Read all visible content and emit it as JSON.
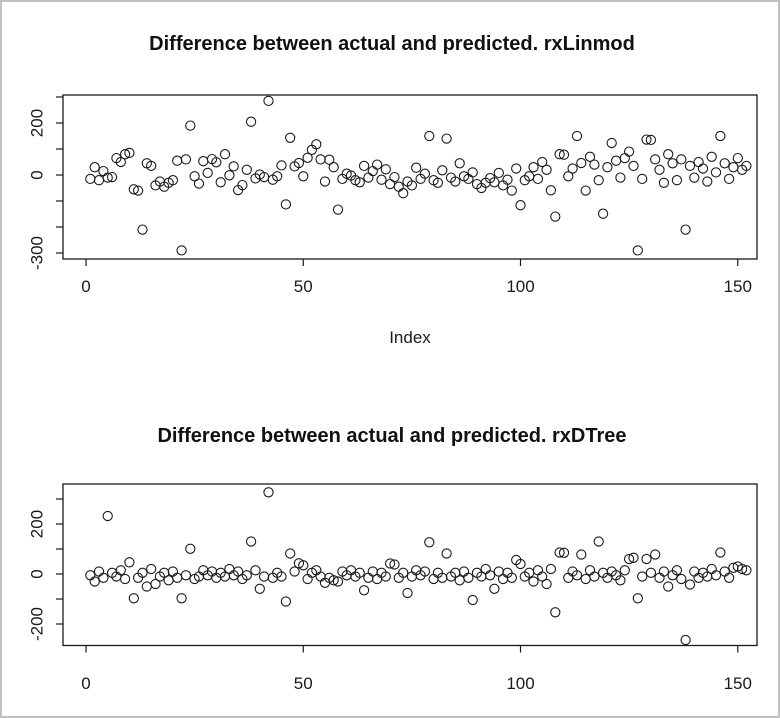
{
  "frame": {
    "border_color": "#c0c0c0",
    "background": "#ffffff"
  },
  "chart_data": [
    {
      "type": "scatter",
      "title": "Difference between actual and predicted. rxLinmod",
      "xlabel": "Index",
      "ylabel": "",
      "marker": "open-circle",
      "grid": false,
      "x_tick_labels": [
        "0",
        "50",
        "100",
        "150"
      ],
      "x_tick_values": [
        0,
        50,
        100,
        150
      ],
      "y_ticks": [
        {
          "v": 300,
          "label": ""
        },
        {
          "v": 200,
          "label": "200"
        },
        {
          "v": 100,
          "label": ""
        },
        {
          "v": 0,
          "label": "0"
        },
        {
          "v": -100,
          "label": ""
        },
        {
          "v": -200,
          "label": ""
        },
        {
          "v": -300,
          "label": "-300"
        }
      ],
      "xlim": [
        -5,
        158
      ],
      "ylim": [
        -323,
        308
      ],
      "x_start": 1,
      "values": [
        -15,
        30,
        -20,
        15,
        -10,
        -8,
        65,
        50,
        80,
        85,
        -55,
        -60,
        -210,
        45,
        35,
        -40,
        -25,
        -45,
        -30,
        -20,
        55,
        -290,
        60,
        190,
        -5,
        -33,
        53,
        8,
        61,
        49,
        -28,
        80,
        -1,
        33,
        -58,
        -39,
        20,
        205,
        -13,
        2,
        -8,
        285,
        -18,
        -5,
        37,
        -113,
        143,
        33,
        46,
        -5,
        66,
        97,
        118,
        60,
        -25,
        59,
        30,
        -133,
        -15,
        5,
        -2,
        -20,
        -28,
        35,
        -10,
        15,
        40,
        -18,
        22,
        -35,
        -8,
        -45,
        -70,
        -25,
        -40,
        28,
        -15,
        5,
        150,
        -20,
        -30,
        18,
        140,
        -10,
        -25,
        45,
        -5,
        -15,
        10,
        -35,
        -50,
        -30,
        -12,
        -28,
        8,
        -40,
        -18,
        -60,
        25,
        -116,
        -20,
        -5,
        30,
        -15,
        50,
        20,
        -59,
        -160,
        80,
        78,
        -5,
        25,
        150,
        46,
        -60,
        70,
        40,
        -20,
        -149,
        30,
        123,
        55,
        -10,
        65,
        90,
        35,
        -290,
        -15,
        136,
        135,
        60,
        20,
        -30,
        80,
        45,
        -20,
        60,
        -210,
        35,
        -10,
        50,
        25,
        -25,
        70,
        10,
        150,
        45,
        -15,
        30,
        65,
        20,
        35
      ]
    },
    {
      "type": "scatter",
      "title": "Difference between actual and predicted. rxDTree",
      "xlabel": "",
      "ylabel": "",
      "marker": "open-circle",
      "grid": false,
      "x_tick_labels": [
        "0",
        "50",
        "100",
        "150"
      ],
      "x_tick_values": [
        0,
        50,
        100,
        150
      ],
      "y_ticks": [
        {
          "v": 300,
          "label": ""
        },
        {
          "v": 200,
          "label": "200"
        },
        {
          "v": 100,
          "label": ""
        },
        {
          "v": 0,
          "label": "0"
        },
        {
          "v": -100,
          "label": ""
        },
        {
          "v": -200,
          "label": "-200"
        }
      ],
      "xlim": [
        -5,
        158
      ],
      "ylim": [
        -288,
        351
      ],
      "x_start": 1,
      "values": [
        -5,
        -30,
        10,
        -15,
        232,
        5,
        -10,
        15,
        -20,
        47,
        -97,
        -15,
        5,
        -50,
        20,
        -40,
        -10,
        5,
        -25,
        10,
        -15,
        -97,
        -5,
        101,
        -20,
        -10,
        15,
        -5,
        10,
        -15,
        5,
        -10,
        20,
        -5,
        10,
        -20,
        -5,
        130,
        15,
        -59,
        -10,
        327,
        -15,
        5,
        -10,
        -110,
        82,
        10,
        43,
        35,
        -20,
        5,
        15,
        -10,
        -35,
        -15,
        -25,
        -30,
        10,
        -5,
        15,
        -10,
        5,
        -65,
        -15,
        10,
        -20,
        5,
        -10,
        42,
        38,
        -15,
        5,
        -76,
        -10,
        15,
        -5,
        10,
        127,
        -20,
        5,
        -15,
        82,
        -10,
        5,
        -25,
        10,
        -15,
        -104,
        5,
        -10,
        20,
        -5,
        -59,
        10,
        -20,
        5,
        -15,
        56,
        40,
        -10,
        5,
        -30,
        15,
        -10,
        -40,
        20,
        -153,
        86,
        85,
        -15,
        10,
        -5,
        78,
        -20,
        15,
        -10,
        130,
        5,
        -15,
        10,
        -5,
        -25,
        15,
        60,
        65,
        -97,
        -10,
        60,
        5,
        78,
        -15,
        10,
        -50,
        -5,
        15,
        -20,
        -264,
        -42,
        10,
        -15,
        5,
        -10,
        20,
        -5,
        86,
        10,
        -15,
        25,
        30,
        20,
        15
      ]
    }
  ]
}
